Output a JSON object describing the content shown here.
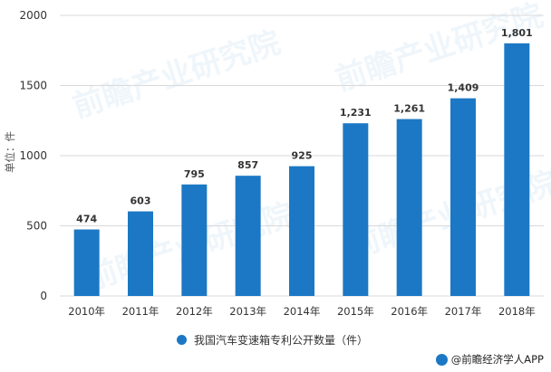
{
  "chart_data": {
    "type": "bar",
    "categories": [
      "2010年",
      "2011年",
      "2012年",
      "2013年",
      "2014年",
      "2015年",
      "2016年",
      "2017年",
      "2018年"
    ],
    "series": [
      {
        "name": "我国汽车变速箱专利公开数量（件）",
        "values": [
          474,
          603,
          795,
          857,
          925,
          1231,
          1261,
          1409,
          1801
        ],
        "labels": [
          "474",
          "603",
          "795",
          "857",
          "925",
          "1,231",
          "1,261",
          "1,409",
          "1,801"
        ],
        "color": "#1c78c4"
      }
    ],
    "ylabel": "单位：件",
    "ylim": [
      0,
      2000
    ],
    "yticks": [
      0,
      500,
      1000,
      1500,
      2000
    ],
    "grid": true,
    "legend_position": "bottom"
  },
  "watermark": "前瞻产业研究院",
  "credit": {
    "text": "@前瞻经济学人APP",
    "icon": "logo-icon",
    "icon_color": "#1c78c4"
  }
}
